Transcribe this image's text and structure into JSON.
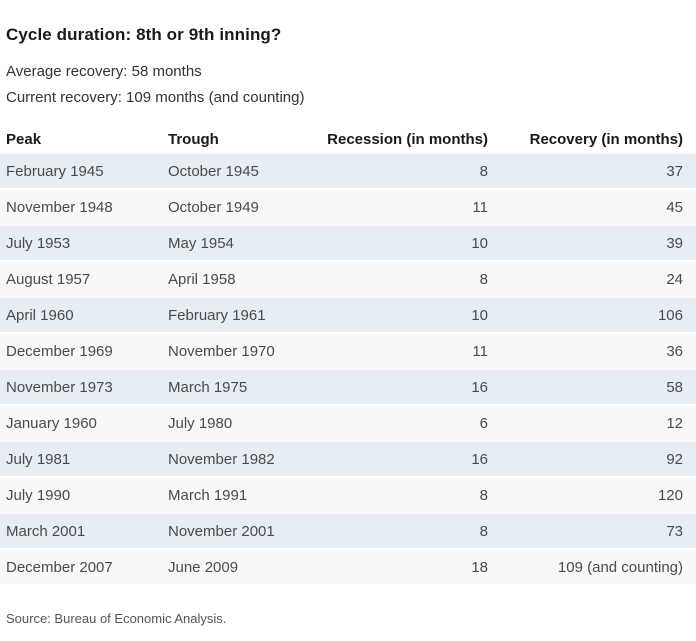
{
  "header": {
    "title": "Cycle duration: 8th or 9th inning?",
    "subtitle_line1": "Average recovery: 58 months",
    "subtitle_line2": "Current recovery: 109 months (and counting)"
  },
  "table": {
    "columns": [
      "Peak",
      "Trough",
      "Recession (in months)",
      "Recovery (in months)"
    ],
    "rows": [
      {
        "peak": "February 1945",
        "trough": "October 1945",
        "recession": "8",
        "recovery": "37"
      },
      {
        "peak": "November 1948",
        "trough": "October 1949",
        "recession": "11",
        "recovery": "45"
      },
      {
        "peak": "July 1953",
        "trough": "May 1954",
        "recession": "10",
        "recovery": "39"
      },
      {
        "peak": "August 1957",
        "trough": "April 1958",
        "recession": "8",
        "recovery": "24"
      },
      {
        "peak": "April 1960",
        "trough": "February 1961",
        "recession": "10",
        "recovery": "106"
      },
      {
        "peak": "December 1969",
        "trough": "November 1970",
        "recession": "11",
        "recovery": "36"
      },
      {
        "peak": "November 1973",
        "trough": "March 1975",
        "recession": "16",
        "recovery": "58"
      },
      {
        "peak": "January 1960",
        "trough": "July 1980",
        "recession": "6",
        "recovery": "12"
      },
      {
        "peak": "July 1981",
        "trough": "November 1982",
        "recession": "16",
        "recovery": "92"
      },
      {
        "peak": "July 1990",
        "trough": "March 1991",
        "recession": "8",
        "recovery": "120"
      },
      {
        "peak": "March 2001",
        "trough": "November 2001",
        "recession": "8",
        "recovery": "73"
      },
      {
        "peak": "December 2007",
        "trough": "June 2009",
        "recession": "18",
        "recovery": "109 (and counting)"
      }
    ]
  },
  "footer": {
    "source": "Source: Bureau of Economic Analysis."
  },
  "colors": {
    "row_alt_blue": "#e6edf4",
    "row_alt_gray": "#f7f8fa",
    "title_text": "#1a1a1a",
    "cell_text": "#4a4a4a",
    "source_text": "#555555"
  }
}
